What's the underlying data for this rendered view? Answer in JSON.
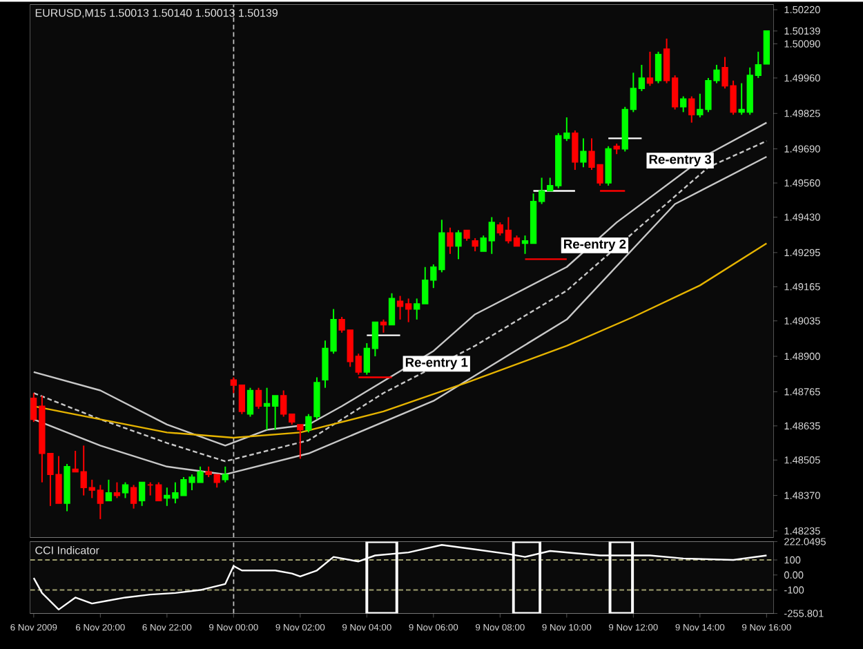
{
  "chart_data": [
    {
      "type": "candlestick",
      "title": "EURUSD,M15  1.50013 1.50140 1.50013 1.50139",
      "categories": [
        "6 Nov 2009",
        null,
        null,
        null,
        null,
        null,
        null,
        null,
        "6 Nov 20:00",
        null,
        null,
        null,
        null,
        null,
        null,
        null,
        "6 Nov 22:00",
        null,
        null,
        null,
        null,
        null,
        null,
        null,
        "9 Nov 00:00",
        null,
        null,
        null,
        null,
        null,
        null,
        null,
        "9 Nov 02:00",
        null,
        null,
        null,
        null,
        null,
        null,
        null,
        "9 Nov 04:00",
        null,
        null,
        null,
        null,
        null,
        null,
        null,
        "9 Nov 06:00",
        null,
        null,
        null,
        null,
        null,
        null,
        null,
        "9 Nov 08:00",
        null,
        null,
        null,
        null,
        null,
        null,
        null,
        "9 Nov 10:00",
        null,
        null,
        null,
        null,
        null,
        null,
        null,
        "9 Nov 12:00",
        null,
        null,
        null,
        null,
        null,
        null,
        null,
        "9 Nov 14:00",
        null,
        null,
        null,
        null,
        null,
        null,
        null,
        "9 Nov 16:00"
      ],
      "ohlc": [
        [
          1.4874,
          1.4876,
          1.4865,
          1.4866
        ],
        [
          1.4871,
          1.4875,
          1.4842,
          1.4853
        ],
        [
          1.4853,
          1.4853,
          1.4833,
          1.4845
        ],
        [
          1.4845,
          1.4852,
          1.4834,
          1.4834
        ],
        [
          1.4834,
          1.4849,
          1.4831,
          1.4848
        ],
        [
          1.4847,
          1.4854,
          1.4846,
          1.4846
        ],
        [
          1.4846,
          1.4856,
          1.4837,
          1.484
        ],
        [
          1.484,
          1.4843,
          1.4836,
          1.4839
        ],
        [
          1.4839,
          1.4841,
          1.4828,
          1.4834
        ],
        [
          1.4835,
          1.4843,
          1.4835,
          1.4838
        ],
        [
          1.4838,
          1.4842,
          1.4836,
          1.4837
        ],
        [
          1.4838,
          1.4842,
          1.4836,
          1.4841
        ],
        [
          1.484,
          1.4841,
          1.4832,
          1.4834
        ],
        [
          1.4835,
          1.4842,
          1.4833,
          1.4842
        ],
        [
          1.4841,
          1.4842,
          1.4837,
          1.4841
        ],
        [
          1.4841,
          1.4842,
          1.4835,
          1.4835
        ],
        [
          1.4836,
          1.484,
          1.4833,
          1.4837
        ],
        [
          1.4836,
          1.4842,
          1.4834,
          1.4838
        ],
        [
          1.4837,
          1.4844,
          1.4837,
          1.4843
        ],
        [
          1.4842,
          1.4845,
          1.4839,
          1.4844
        ],
        [
          1.4842,
          1.4848,
          1.4842,
          1.4846
        ],
        [
          1.4846,
          1.4848,
          1.4844,
          1.4845
        ],
        [
          1.4845,
          1.4845,
          1.484,
          1.4842
        ],
        [
          1.4843,
          1.4848,
          1.4842,
          1.4845
        ],
        [
          1.4881,
          1.4882,
          1.4876,
          1.4879
        ],
        [
          1.4879,
          1.4879,
          1.4868,
          1.4869
        ],
        [
          1.4868,
          1.4878,
          1.4867,
          1.4877
        ],
        [
          1.4877,
          1.4878,
          1.487,
          1.4871
        ],
        [
          1.4871,
          1.4878,
          1.4862,
          1.4872
        ],
        [
          1.4871,
          1.4875,
          1.4862,
          1.4875
        ],
        [
          1.4875,
          1.4877,
          1.4867,
          1.4868
        ],
        [
          1.4868,
          1.4868,
          1.4864,
          1.4865
        ],
        [
          1.4864,
          1.4864,
          1.4851,
          1.4862
        ],
        [
          1.4862,
          1.4868,
          1.4861,
          1.4867
        ],
        [
          1.4867,
          1.4882,
          1.4866,
          1.488
        ],
        [
          1.4881,
          1.4896,
          1.4878,
          1.4893
        ],
        [
          1.4892,
          1.4908,
          1.4891,
          1.4904
        ],
        [
          1.4904,
          1.4905,
          1.4899,
          1.49
        ],
        [
          1.49,
          1.49,
          1.4886,
          1.4888
        ],
        [
          1.489,
          1.4891,
          1.4883,
          1.4884
        ],
        [
          1.4884,
          1.4895,
          1.4883,
          1.4893
        ],
        [
          1.4893,
          1.4903,
          1.489,
          1.4903
        ],
        [
          1.4903,
          1.4904,
          1.4899,
          1.4902
        ],
        [
          1.4902,
          1.4914,
          1.4902,
          1.4912
        ],
        [
          1.4911,
          1.4913,
          1.4904,
          1.4909
        ],
        [
          1.491,
          1.4912,
          1.4903,
          1.4908
        ],
        [
          1.4908,
          1.4912,
          1.4904,
          1.491
        ],
        [
          1.491,
          1.4924,
          1.491,
          1.4919
        ],
        [
          1.4919,
          1.4925,
          1.4916,
          1.4924
        ],
        [
          1.4923,
          1.4942,
          1.4922,
          1.4937
        ],
        [
          1.4937,
          1.4939,
          1.4929,
          1.4932
        ],
        [
          1.4932,
          1.4938,
          1.4927,
          1.4937
        ],
        [
          1.4938,
          1.4938,
          1.4934,
          1.4935
        ],
        [
          1.4934,
          1.4935,
          1.493,
          1.4932
        ],
        [
          1.493,
          1.4936,
          1.493,
          1.4935
        ],
        [
          1.4934,
          1.4943,
          1.4929,
          1.4941
        ],
        [
          1.494,
          1.4941,
          1.4936,
          1.4937
        ],
        [
          1.4938,
          1.4943,
          1.4933,
          1.4934
        ],
        [
          1.4935,
          1.4936,
          1.4932,
          1.4932
        ],
        [
          1.4933,
          1.4936,
          1.4929,
          1.4934
        ],
        [
          1.4933,
          1.4952,
          1.4933,
          1.4949
        ],
        [
          1.4949,
          1.4958,
          1.4948,
          1.4953
        ],
        [
          1.4953,
          1.4958,
          1.4953,
          1.4955
        ],
        [
          1.4955,
          1.4975,
          1.4954,
          1.4974
        ],
        [
          1.4973,
          1.4981,
          1.4972,
          1.4975
        ],
        [
          1.4975,
          1.4976,
          1.4961,
          1.4964
        ],
        [
          1.4964,
          1.4973,
          1.4962,
          1.4968
        ],
        [
          1.4968,
          1.4973,
          1.4961,
          1.4962
        ],
        [
          1.4963,
          1.4963,
          1.4955,
          1.4956
        ],
        [
          1.4956,
          1.497,
          1.4955,
          1.4969
        ],
        [
          1.497,
          1.4971,
          1.4967,
          1.4969
        ],
        [
          1.4969,
          1.4985,
          1.4968,
          1.4984
        ],
        [
          1.4984,
          1.4998,
          1.4983,
          1.4992
        ],
        [
          1.4992,
          1.5001,
          1.4991,
          1.4996
        ],
        [
          1.4996,
          1.5006,
          1.4993,
          1.4994
        ],
        [
          1.4995,
          1.5006,
          1.4994,
          1.5005
        ],
        [
          1.5007,
          1.5011,
          1.4994,
          1.4995
        ],
        [
          1.4996,
          1.4997,
          1.4984,
          1.4985
        ],
        [
          1.4985,
          1.4989,
          1.4983,
          1.4988
        ],
        [
          1.4988,
          1.4989,
          1.4979,
          1.4982
        ],
        [
          1.4982,
          1.499,
          1.4981,
          1.4984
        ],
        [
          1.4984,
          1.4996,
          1.4983,
          1.4995
        ],
        [
          1.4995,
          1.5001,
          1.4994,
          1.4999
        ],
        [
          1.5,
          1.5004,
          1.4992,
          1.4993
        ],
        [
          1.4993,
          1.4995,
          1.4982,
          1.4983
        ],
        [
          1.4983,
          1.4994,
          1.4982,
          1.4984
        ],
        [
          1.4983,
          1.5,
          1.4982,
          1.4997
        ],
        [
          1.4997,
          1.5006,
          1.4996,
          1.5001
        ],
        [
          1.50013,
          1.5014,
          1.50013,
          1.50139
        ]
      ],
      "colors": [
        "#ff0000",
        "#ff0000",
        "#ff0000",
        "#ff0000",
        "#00ff00",
        "#ff0000",
        "#ff0000",
        "#ff0000",
        "#ff0000",
        "#00ff00",
        "#ff0000",
        "#00ff00",
        "#ff0000",
        "#00ff00",
        "#ff0000",
        "#ff0000",
        "#00ff00",
        "#00ff00",
        "#00ff00",
        "#00ff00",
        "#00ff00",
        "#ff0000",
        "#ff0000",
        "#00ff00",
        "#ff0000",
        "#ff0000",
        "#00ff00",
        "#ff0000",
        "#00ff00",
        "#00ff00",
        "#ff0000",
        "#ff0000",
        "#ff0000",
        "#00ff00",
        "#00ff00",
        "#00ff00",
        "#00ff00",
        "#ff0000",
        "#ff0000",
        "#ff0000",
        "#00ff00",
        "#00ff00",
        "#ff0000",
        "#00ff00",
        "#ff0000",
        "#ff0000",
        "#00ff00",
        "#00ff00",
        "#00ff00",
        "#00ff00",
        "#ff0000",
        "#00ff00",
        "#ff0000",
        "#ff0000",
        "#00ff00",
        "#00ff00",
        "#ff0000",
        "#ff0000",
        "#ff0000",
        "#00ff00",
        "#00ff00",
        "#00ff00",
        "#00ff00",
        "#00ff00",
        "#00ff00",
        "#ff0000",
        "#00ff00",
        "#ff0000",
        "#ff0000",
        "#00ff00",
        "#ff0000",
        "#00ff00",
        "#00ff00",
        "#00ff00",
        "#ff0000",
        "#00ff00",
        "#ff0000",
        "#ff0000",
        "#00ff00",
        "#ff0000",
        "#00ff00",
        "#00ff00",
        "#00ff00",
        "#ff0000",
        "#ff0000",
        "#00ff00",
        "#00ff00",
        "#00ff00",
        "#00ff00"
      ],
      "series": [
        {
          "type": "line",
          "color": "#c8c8c8",
          "line_style": "solid",
          "values": [
            1.4884,
            null,
            null,
            null,
            null,
            null,
            null,
            null,
            1.4877,
            null,
            null,
            null,
            null,
            null,
            null,
            null,
            1.4864,
            null,
            null,
            null,
            null,
            null,
            null,
            1.4856,
            null,
            null,
            null,
            null,
            1.4862,
            null,
            null,
            null,
            null,
            1.4864,
            null,
            null,
            null,
            1.4871,
            null,
            null,
            null,
            null,
            null,
            null,
            null,
            null,
            null,
            null,
            1.4892,
            null,
            null,
            null,
            null,
            1.4906,
            null,
            null,
            null,
            null,
            null,
            null,
            null,
            null,
            null,
            null,
            1.4924,
            null,
            null,
            null,
            null,
            null,
            1.4941,
            null,
            null,
            null,
            null,
            null,
            null,
            null,
            null,
            null,
            null,
            1.4967,
            null,
            null,
            null,
            null,
            null,
            null,
            1.4979
          ]
        },
        {
          "type": "line",
          "color": "#c8c8c8",
          "line_style": "dashed",
          "values": [
            1.4876,
            null,
            null,
            null,
            null,
            null,
            null,
            null,
            1.4866,
            null,
            null,
            null,
            null,
            null,
            null,
            null,
            1.4857,
            null,
            null,
            null,
            null,
            null,
            null,
            1.485,
            null,
            null,
            null,
            null,
            null,
            null,
            null,
            null,
            null,
            1.4858,
            null,
            null,
            null,
            null,
            null,
            null,
            null,
            null,
            1.4876,
            null,
            null,
            null,
            null,
            null,
            null,
            null,
            null,
            null,
            null,
            1.4894,
            null,
            null,
            null,
            null,
            null,
            null,
            null,
            null,
            null,
            null,
            1.4915,
            null,
            null,
            null,
            null,
            null,
            null,
            null,
            null,
            null,
            null,
            null,
            null,
            null,
            null,
            null,
            null,
            1.4962,
            null,
            null,
            null,
            null,
            null,
            null,
            1.4972
          ]
        },
        {
          "type": "line",
          "color": "#c8c8c8",
          "line_style": "solid",
          "values": [
            1.4866,
            null,
            null,
            null,
            null,
            null,
            null,
            null,
            1.4856,
            null,
            null,
            null,
            null,
            null,
            null,
            null,
            1.4848,
            null,
            null,
            null,
            null,
            null,
            null,
            1.4845,
            null,
            null,
            null,
            null,
            null,
            null,
            null,
            null,
            null,
            1.4853,
            null,
            null,
            null,
            null,
            null,
            null,
            null,
            null,
            null,
            null,
            null,
            null,
            null,
            null,
            1.4873,
            null,
            null,
            null,
            null,
            null,
            null,
            null,
            null,
            null,
            null,
            null,
            null,
            null,
            null,
            null,
            1.4904,
            null,
            null,
            null,
            null,
            null,
            null,
            null,
            null,
            null,
            null,
            null,
            null,
            1.4948,
            null,
            null,
            null,
            null,
            null,
            null,
            null,
            null,
            null,
            null,
            1.4966
          ]
        },
        {
          "type": "line",
          "color": "#e6b400",
          "line_style": "solid",
          "values": [
            1.4871,
            null,
            null,
            null,
            null,
            null,
            null,
            null,
            1.4866,
            null,
            null,
            null,
            null,
            null,
            null,
            null,
            1.4861,
            null,
            null,
            null,
            null,
            null,
            null,
            null,
            1.4859,
            null,
            null,
            null,
            null,
            null,
            null,
            null,
            1.4861,
            null,
            null,
            null,
            null,
            null,
            null,
            null,
            null,
            null,
            1.4869,
            null,
            null,
            null,
            null,
            null,
            null,
            null,
            null,
            null,
            1.488,
            null,
            null,
            null,
            null,
            null,
            null,
            null,
            null,
            null,
            null,
            null,
            1.4894,
            null,
            null,
            null,
            null,
            null,
            null,
            null,
            1.4905,
            null,
            null,
            null,
            null,
            null,
            null,
            null,
            1.4917,
            null,
            null,
            null,
            null,
            null,
            null,
            null,
            1.4933
          ]
        },
        {
          "type": "line",
          "color": "#ffffff",
          "line_style": "solid",
          "values": [
            null,
            null,
            null,
            null,
            null,
            null,
            null,
            null,
            null,
            null,
            null,
            null,
            null,
            null,
            null,
            null,
            null,
            null,
            null,
            null,
            null,
            null,
            null,
            null,
            null,
            null,
            null,
            null,
            null,
            null,
            null,
            null,
            null,
            null,
            null,
            null,
            null,
            null,
            null,
            null,
            1.4898,
            1.4898,
            1.4898,
            1.4898,
            1.4898,
            null,
            null,
            null,
            null,
            null,
            null,
            null,
            null,
            null,
            null,
            null,
            null,
            null,
            null,
            null,
            null,
            null,
            null,
            null,
            null,
            null,
            null,
            null,
            null,
            null,
            null,
            null,
            null,
            null,
            null,
            null,
            null,
            null,
            null,
            null,
            null,
            null,
            null,
            null,
            null,
            null,
            null,
            null,
            null
          ]
        },
        {
          "type": "line",
          "color": "#ff0000",
          "line_style": "solid",
          "values": [
            null,
            null,
            null,
            null,
            null,
            null,
            null,
            null,
            null,
            null,
            null,
            null,
            null,
            null,
            null,
            null,
            null,
            null,
            null,
            null,
            null,
            null,
            null,
            null,
            null,
            null,
            null,
            null,
            null,
            null,
            null,
            null,
            null,
            null,
            null,
            null,
            null,
            null,
            null,
            1.4882,
            1.4882,
            1.4882,
            1.4882,
            1.4882,
            null,
            null,
            null,
            null,
            null,
            null,
            null,
            null,
            null,
            null,
            null,
            null,
            null,
            null,
            null,
            null,
            null,
            null,
            null,
            null,
            null,
            null,
            null,
            null,
            null,
            null,
            null,
            null,
            null,
            null,
            null,
            null,
            null,
            null,
            null,
            null,
            null,
            null,
            null,
            null,
            null,
            null,
            null,
            null,
            null
          ]
        },
        {
          "type": "line",
          "color": "#ffffff",
          "line_style": "solid",
          "values": [
            null,
            null,
            null,
            null,
            null,
            null,
            null,
            null,
            null,
            null,
            null,
            null,
            null,
            null,
            null,
            null,
            null,
            null,
            null,
            null,
            null,
            null,
            null,
            null,
            null,
            null,
            null,
            null,
            null,
            null,
            null,
            null,
            null,
            null,
            null,
            null,
            null,
            null,
            null,
            null,
            null,
            null,
            null,
            null,
            null,
            null,
            null,
            null,
            null,
            null,
            null,
            null,
            null,
            null,
            null,
            null,
            null,
            null,
            null,
            null,
            1.4953,
            1.4953,
            1.4953,
            1.4953,
            1.4953,
            1.4953,
            null,
            null,
            null,
            null,
            null,
            null,
            null,
            null,
            null,
            null,
            null,
            null,
            null,
            null,
            null,
            null,
            null,
            null,
            null,
            null,
            null,
            null,
            null
          ]
        },
        {
          "type": "line",
          "color": "#ff0000",
          "line_style": "solid",
          "values": [
            null,
            null,
            null,
            null,
            null,
            null,
            null,
            null,
            null,
            null,
            null,
            null,
            null,
            null,
            null,
            null,
            null,
            null,
            null,
            null,
            null,
            null,
            null,
            null,
            null,
            null,
            null,
            null,
            null,
            null,
            null,
            null,
            null,
            null,
            null,
            null,
            null,
            null,
            null,
            null,
            null,
            null,
            null,
            null,
            null,
            null,
            null,
            null,
            null,
            null,
            null,
            null,
            null,
            null,
            null,
            null,
            null,
            null,
            null,
            1.4927,
            1.4927,
            1.4927,
            1.4927,
            1.4927,
            1.4927,
            null,
            null,
            null,
            null,
            null,
            null,
            null,
            null,
            null,
            null,
            null,
            null,
            null,
            null,
            null,
            null,
            null,
            null,
            null,
            null,
            null,
            null,
            null,
            null
          ]
        },
        {
          "type": "line",
          "color": "#ffffff",
          "line_style": "solid",
          "values": [
            null,
            null,
            null,
            null,
            null,
            null,
            null,
            null,
            null,
            null,
            null,
            null,
            null,
            null,
            null,
            null,
            null,
            null,
            null,
            null,
            null,
            null,
            null,
            null,
            null,
            null,
            null,
            null,
            null,
            null,
            null,
            null,
            null,
            null,
            null,
            null,
            null,
            null,
            null,
            null,
            null,
            null,
            null,
            null,
            null,
            null,
            null,
            null,
            null,
            null,
            null,
            null,
            null,
            null,
            null,
            null,
            null,
            null,
            null,
            null,
            null,
            null,
            null,
            null,
            null,
            null,
            null,
            null,
            null,
            1.4973,
            1.4973,
            1.4973,
            1.4973,
            1.4973,
            null,
            null,
            null,
            null,
            null,
            null,
            null,
            null,
            null,
            null,
            null,
            null,
            null,
            null,
            null
          ]
        },
        {
          "type": "line",
          "color": "#ff0000",
          "line_style": "solid",
          "values": [
            null,
            null,
            null,
            null,
            null,
            null,
            null,
            null,
            null,
            null,
            null,
            null,
            null,
            null,
            null,
            null,
            null,
            null,
            null,
            null,
            null,
            null,
            null,
            null,
            null,
            null,
            null,
            null,
            null,
            null,
            null,
            null,
            null,
            null,
            null,
            null,
            null,
            null,
            null,
            null,
            null,
            null,
            null,
            null,
            null,
            null,
            null,
            null,
            null,
            null,
            null,
            null,
            null,
            null,
            null,
            null,
            null,
            null,
            null,
            null,
            null,
            null,
            null,
            null,
            null,
            null,
            null,
            null,
            1.4953,
            1.4953,
            1.4953,
            1.4953,
            null,
            null,
            null,
            null,
            null,
            null,
            null,
            null,
            null,
            null,
            null,
            null,
            null,
            null,
            null,
            null,
            null
          ]
        }
      ],
      "annotations": [
        "Re-entry 1",
        {
          "text": "Re-entry 2",
          "y": 1.4927
        },
        "Re-entry 3"
      ],
      "ref_lines": [
        {
          "axis": "x",
          "value": "9 Nov 00:00",
          "color": "#c0c0c0",
          "line_style": "dashed"
        }
      ],
      "ylim": [
        1.4821,
        1.5024
      ],
      "yticks": [
        {
          "value": 1.5022,
          "label": "1.50220"
        },
        {
          "value": 1.50139,
          "label": "1.50139"
        },
        {
          "value": 1.5009,
          "label": "1.50090"
        },
        {
          "value": 1.4996,
          "label": "1.49960"
        },
        {
          "value": 1.49825,
          "label": "1.49825"
        },
        {
          "value": 1.4969,
          "label": "1.49690"
        },
        {
          "value": 1.4956,
          "label": "1.49560"
        },
        {
          "value": 1.4943,
          "label": "1.49430"
        },
        {
          "value": 1.49295,
          "label": "1.49295"
        },
        {
          "value": 1.49165,
          "label": "1.49165"
        },
        {
          "value": 1.49035,
          "label": "1.49035"
        },
        {
          "value": 1.489,
          "label": "1.48900"
        },
        {
          "value": 1.48765,
          "label": "1.48765"
        },
        {
          "value": 1.48635,
          "label": "1.48635"
        },
        {
          "value": 1.48505,
          "label": "1.48505"
        },
        {
          "value": 1.4837,
          "label": "1.48370"
        },
        {
          "value": 1.48235,
          "label": "1.48235"
        }
      ],
      "tick_labels": "y"
    },
    {
      "type": "line",
      "title": "CCI Indicator",
      "marker": "none",
      "categories": [
        "6 Nov 2009",
        null,
        null,
        null,
        null,
        null,
        null,
        null,
        "6 Nov 20:00",
        null,
        null,
        null,
        null,
        null,
        null,
        null,
        "6 Nov 22:00",
        null,
        null,
        null,
        null,
        null,
        null,
        null,
        "9 Nov 00:00",
        null,
        null,
        null,
        null,
        null,
        null,
        null,
        "9 Nov 02:00",
        null,
        null,
        null,
        null,
        null,
        null,
        null,
        "9 Nov 04:00",
        null,
        null,
        null,
        null,
        null,
        null,
        null,
        "9 Nov 06:00",
        null,
        null,
        null,
        null,
        null,
        null,
        null,
        "9 Nov 08:00",
        null,
        null,
        null,
        null,
        null,
        null,
        null,
        "9 Nov 10:00",
        null,
        null,
        null,
        null,
        null,
        null,
        null,
        "9 Nov 12:00",
        null,
        null,
        null,
        null,
        null,
        null,
        null,
        "9 Nov 14:00",
        null,
        null,
        null,
        null,
        null,
        null,
        null,
        "9 Nov 16:00"
      ],
      "series": [
        {
          "color": "#ffffff",
          "values": [
            -20,
            -120,
            null,
            -230,
            null,
            -150,
            null,
            -190,
            null,
            -170,
            null,
            -150,
            null,
            null,
            -130,
            null,
            null,
            -120,
            null,
            null,
            -100,
            null,
            null,
            -60,
            60,
            30,
            null,
            null,
            null,
            30,
            null,
            10,
            -10,
            null,
            30,
            null,
            120,
            null,
            null,
            90,
            null,
            130,
            null,
            null,
            null,
            150,
            null,
            null,
            null,
            200,
            null,
            null,
            null,
            170,
            null,
            null,
            null,
            140,
            null,
            120,
            null,
            null,
            160,
            null,
            null,
            null,
            null,
            null,
            130,
            null,
            null,
            null,
            null,
            null,
            130,
            null,
            null,
            null,
            110,
            null,
            null,
            null,
            null,
            null,
            100,
            null,
            null,
            null,
            130
          ]
        }
      ],
      "ref_lines": [
        {
          "axis": "x",
          "value": "9 Nov 00:00",
          "color": "#c0c0c0",
          "line_style": "dashed"
        },
        {
          "axis": "y",
          "value": 100,
          "color": "#a0a070",
          "line_style": "dashed"
        },
        {
          "axis": "y",
          "value": -100,
          "color": "#a0a070",
          "line_style": "dashed"
        }
      ],
      "ylim": [
        -255.801,
        222.0495
      ],
      "yticks": [
        {
          "value": 222.0495,
          "label": "222.0495"
        },
        100,
        {
          "value": 0,
          "label": "0.00"
        },
        -100,
        {
          "value": -255.801,
          "label": "-255.801"
        }
      ]
    }
  ]
}
